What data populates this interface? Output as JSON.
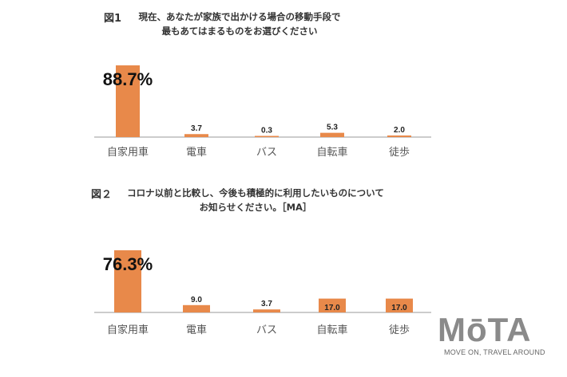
{
  "brand": {
    "logo": "MōTA",
    "tagline": "MOVE ON, TRAVEL AROUND"
  },
  "colors": {
    "bar": "#e8894a",
    "axis": "#999999"
  },
  "chart_data": [
    {
      "type": "bar",
      "figure_label": "図1",
      "title": "現在、あなたが家族で出かける場合の移動手段で\n最もあてはまるものをお選びください",
      "categories": [
        "自家用車",
        "電車",
        "バス",
        "自転車",
        "徒歩"
      ],
      "values": [
        88.7,
        3.7,
        0.3,
        5.3,
        2.0
      ],
      "value_labels": [
        "88.7%",
        "3.7",
        "0.3",
        "5.3",
        "2.0"
      ],
      "xlabel": "",
      "ylabel": ""
    },
    {
      "type": "bar",
      "figure_label": "図２",
      "title": "コロナ以前と比較し、今後も積極的に利用したいものについて\nお知らせください。［MA］",
      "categories": [
        "自家用車",
        "電車",
        "バス",
        "自転車",
        "徒歩"
      ],
      "values": [
        76.3,
        9.0,
        3.7,
        17.0,
        17.0
      ],
      "value_labels": [
        "76.3%",
        "9.0",
        "3.7",
        "17.0",
        "17.0"
      ],
      "xlabel": "",
      "ylabel": ""
    }
  ]
}
